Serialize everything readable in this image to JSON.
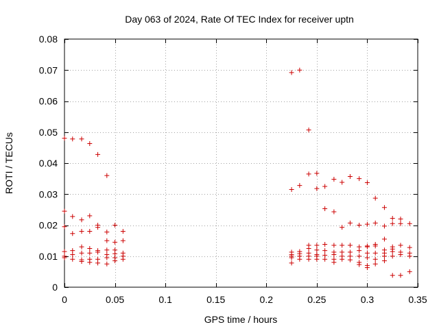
{
  "chart_data": {
    "type": "scatter",
    "title": "Day 063 of 2024, Rate Of TEC Index for receiver uptn",
    "xlabel": "GPS time / hours",
    "ylabel": "ROTI / TECUs",
    "xlim": [
      0,
      0.35
    ],
    "ylim": [
      0,
      0.08
    ],
    "grid": true,
    "marker": "plus",
    "color": "#cc0000",
    "xticks": [
      0,
      0.05,
      0.1,
      0.15,
      0.2,
      0.25,
      0.3,
      0.35
    ],
    "xtick_labels": [
      "0",
      "0.05",
      "0.1",
      "0.15",
      "0.2",
      "0.25",
      "0.3",
      "0.35"
    ],
    "yticks": [
      0,
      0.01,
      0.02,
      0.03,
      0.04,
      0.05,
      0.06,
      0.07,
      0.08
    ],
    "ytick_labels": [
      "0",
      "0.01",
      "0.02",
      "0.03",
      "0.04",
      "0.05",
      "0.06",
      "0.07",
      "0.08"
    ],
    "series": [
      {
        "name": "ROTI",
        "points": [
          [
            0.0,
            0.048
          ],
          [
            0.0,
            0.0245
          ],
          [
            0.0,
            0.0195
          ],
          [
            0.0,
            0.0115
          ],
          [
            0.0,
            0.01
          ],
          [
            0.0,
            0.0095
          ],
          [
            0.008,
            0.0478
          ],
          [
            0.008,
            0.0228
          ],
          [
            0.008,
            0.0173
          ],
          [
            0.008,
            0.0118
          ],
          [
            0.008,
            0.0105
          ],
          [
            0.008,
            0.009
          ],
          [
            0.017,
            0.0478
          ],
          [
            0.017,
            0.0217
          ],
          [
            0.017,
            0.018
          ],
          [
            0.017,
            0.013
          ],
          [
            0.017,
            0.011
          ],
          [
            0.017,
            0.0088
          ],
          [
            0.017,
            0.0083
          ],
          [
            0.025,
            0.0463
          ],
          [
            0.025,
            0.023
          ],
          [
            0.025,
            0.018
          ],
          [
            0.025,
            0.0125
          ],
          [
            0.025,
            0.011
          ],
          [
            0.025,
            0.009
          ],
          [
            0.025,
            0.008
          ],
          [
            0.033,
            0.0428
          ],
          [
            0.033,
            0.02
          ],
          [
            0.033,
            0.0193
          ],
          [
            0.033,
            0.0118
          ],
          [
            0.033,
            0.0113
          ],
          [
            0.033,
            0.009
          ],
          [
            0.033,
            0.0078
          ],
          [
            0.042,
            0.036
          ],
          [
            0.042,
            0.0178
          ],
          [
            0.042,
            0.015
          ],
          [
            0.042,
            0.012
          ],
          [
            0.042,
            0.0105
          ],
          [
            0.042,
            0.0095
          ],
          [
            0.042,
            0.0075
          ],
          [
            0.05,
            0.02
          ],
          [
            0.05,
            0.0145
          ],
          [
            0.05,
            0.012
          ],
          [
            0.05,
            0.0108
          ],
          [
            0.05,
            0.0095
          ],
          [
            0.05,
            0.0085
          ],
          [
            0.058,
            0.018
          ],
          [
            0.058,
            0.015
          ],
          [
            0.058,
            0.011
          ],
          [
            0.058,
            0.01
          ],
          [
            0.058,
            0.009
          ],
          [
            0.225,
            0.0692
          ],
          [
            0.225,
            0.0315
          ],
          [
            0.225,
            0.0113
          ],
          [
            0.225,
            0.0105
          ],
          [
            0.225,
            0.01
          ],
          [
            0.225,
            0.0095
          ],
          [
            0.225,
            0.0078
          ],
          [
            0.233,
            0.07
          ],
          [
            0.233,
            0.0328
          ],
          [
            0.233,
            0.0115
          ],
          [
            0.233,
            0.0108
          ],
          [
            0.233,
            0.01
          ],
          [
            0.233,
            0.009
          ],
          [
            0.242,
            0.0507
          ],
          [
            0.242,
            0.0365
          ],
          [
            0.242,
            0.0135
          ],
          [
            0.242,
            0.0125
          ],
          [
            0.242,
            0.011
          ],
          [
            0.242,
            0.01
          ],
          [
            0.242,
            0.009
          ],
          [
            0.25,
            0.0367
          ],
          [
            0.25,
            0.0318
          ],
          [
            0.25,
            0.0135
          ],
          [
            0.25,
            0.012
          ],
          [
            0.25,
            0.0105
          ],
          [
            0.25,
            0.01
          ],
          [
            0.25,
            0.009
          ],
          [
            0.258,
            0.0325
          ],
          [
            0.258,
            0.0253
          ],
          [
            0.258,
            0.0138
          ],
          [
            0.258,
            0.0118
          ],
          [
            0.258,
            0.0103
          ],
          [
            0.258,
            0.009
          ],
          [
            0.267,
            0.0348
          ],
          [
            0.267,
            0.0243
          ],
          [
            0.267,
            0.0135
          ],
          [
            0.267,
            0.0113
          ],
          [
            0.267,
            0.0105
          ],
          [
            0.267,
            0.009
          ],
          [
            0.267,
            0.008
          ],
          [
            0.275,
            0.0338
          ],
          [
            0.275,
            0.0193
          ],
          [
            0.275,
            0.0135
          ],
          [
            0.275,
            0.0113
          ],
          [
            0.275,
            0.01
          ],
          [
            0.275,
            0.009
          ],
          [
            0.283,
            0.0357
          ],
          [
            0.283,
            0.0207
          ],
          [
            0.283,
            0.0135
          ],
          [
            0.283,
            0.0113
          ],
          [
            0.283,
            0.01
          ],
          [
            0.283,
            0.0088
          ],
          [
            0.292,
            0.035
          ],
          [
            0.292,
            0.02
          ],
          [
            0.292,
            0.013
          ],
          [
            0.292,
            0.0118
          ],
          [
            0.292,
            0.01
          ],
          [
            0.292,
            0.008
          ],
          [
            0.292,
            0.0073
          ],
          [
            0.3,
            0.0337
          ],
          [
            0.3,
            0.0203
          ],
          [
            0.3,
            0.0133
          ],
          [
            0.3,
            0.013
          ],
          [
            0.3,
            0.011
          ],
          [
            0.3,
            0.0095
          ],
          [
            0.3,
            0.007
          ],
          [
            0.3,
            0.0063
          ],
          [
            0.308,
            0.0287
          ],
          [
            0.308,
            0.0207
          ],
          [
            0.308,
            0.0138
          ],
          [
            0.308,
            0.0133
          ],
          [
            0.308,
            0.011
          ],
          [
            0.308,
            0.009
          ],
          [
            0.308,
            0.0075
          ],
          [
            0.317,
            0.0257
          ],
          [
            0.317,
            0.0197
          ],
          [
            0.317,
            0.0155
          ],
          [
            0.317,
            0.012
          ],
          [
            0.317,
            0.011
          ],
          [
            0.317,
            0.01
          ],
          [
            0.317,
            0.0085
          ],
          [
            0.325,
            0.0222
          ],
          [
            0.325,
            0.0205
          ],
          [
            0.325,
            0.013
          ],
          [
            0.325,
            0.0123
          ],
          [
            0.325,
            0.0115
          ],
          [
            0.325,
            0.01
          ],
          [
            0.325,
            0.0038
          ],
          [
            0.333,
            0.022
          ],
          [
            0.333,
            0.0205
          ],
          [
            0.333,
            0.0135
          ],
          [
            0.333,
            0.0113
          ],
          [
            0.333,
            0.0105
          ],
          [
            0.333,
            0.0038
          ],
          [
            0.342,
            0.0205
          ],
          [
            0.342,
            0.0128
          ],
          [
            0.342,
            0.011
          ],
          [
            0.342,
            0.01
          ],
          [
            0.342,
            0.005
          ]
        ]
      }
    ]
  }
}
